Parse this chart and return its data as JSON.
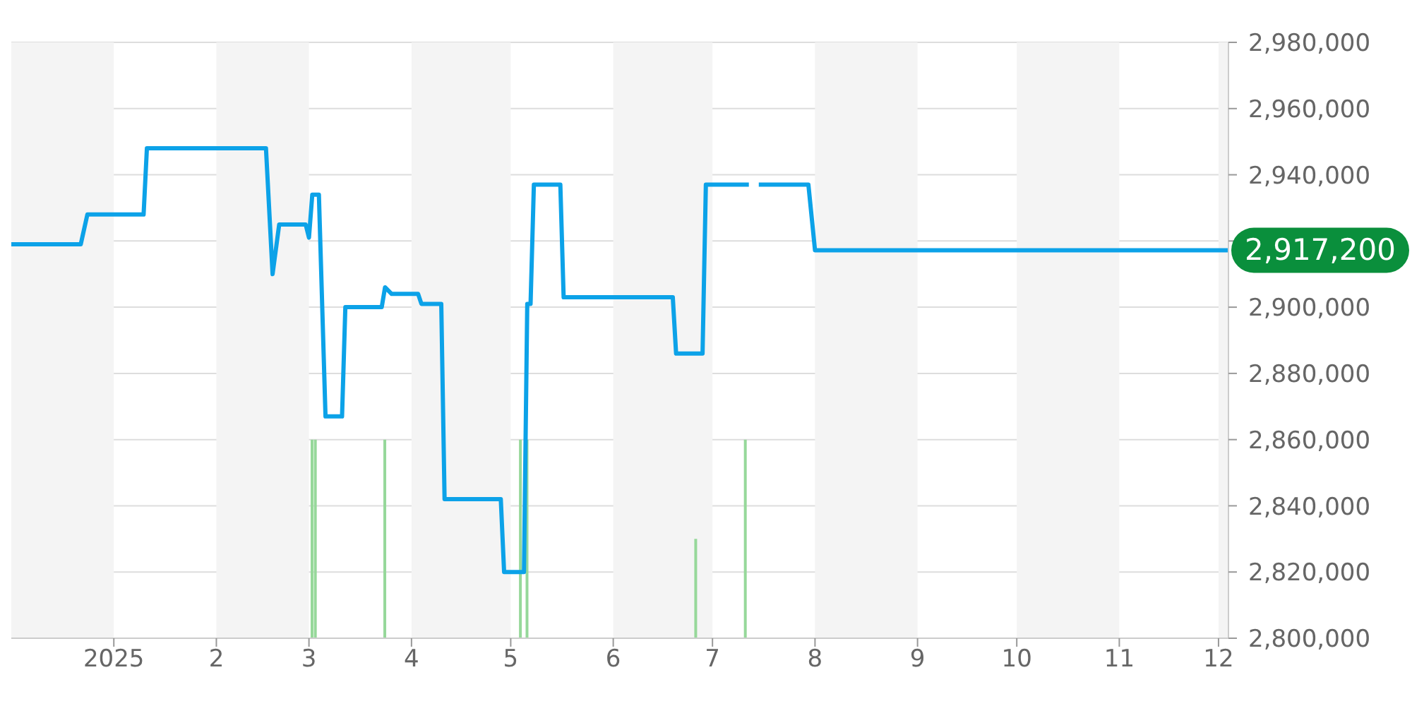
{
  "chart_data": {
    "type": "line",
    "xlim": [
      "2024-12-01",
      "2025-12-04"
    ],
    "ylim": [
      2800000,
      2980000
    ],
    "xticks": [
      {
        "value": "2025-01-01",
        "label": "2025"
      },
      {
        "value": "2025-02-01",
        "label": "2"
      },
      {
        "value": "2025-03-01",
        "label": "3"
      },
      {
        "value": "2025-04-01",
        "label": "4"
      },
      {
        "value": "2025-05-01",
        "label": "5"
      },
      {
        "value": "2025-06-01",
        "label": "6"
      },
      {
        "value": "2025-07-01",
        "label": "7"
      },
      {
        "value": "2025-08-01",
        "label": "8"
      },
      {
        "value": "2025-09-01",
        "label": "9"
      },
      {
        "value": "2025-10-01",
        "label": "10"
      },
      {
        "value": "2025-11-01",
        "label": "11"
      },
      {
        "value": "2025-12-01",
        "label": "12"
      }
    ],
    "yticks": [
      {
        "value": 2800000,
        "label": "2,800,000"
      },
      {
        "value": 2820000,
        "label": "2,820,000"
      },
      {
        "value": 2840000,
        "label": "2,840,000"
      },
      {
        "value": 2860000,
        "label": "2,860,000"
      },
      {
        "value": 2880000,
        "label": "2,880,000"
      },
      {
        "value": 2900000,
        "label": "2,900,000"
      },
      {
        "value": 2920000,
        "label": null
      },
      {
        "value": 2940000,
        "label": "2,940,000"
      },
      {
        "value": 2960000,
        "label": "2,960,000"
      },
      {
        "value": 2980000,
        "label": "2,980,000"
      }
    ],
    "grid": "y",
    "legend": false,
    "marker": "none",
    "line_style": "solid",
    "series": [
      {
        "color": "#0ca2e8",
        "x": [
          "2024-12-01",
          "2024-12-22",
          "2024-12-24",
          "2025-01-10",
          "2025-01-11",
          "2025-02-16",
          "2025-02-18",
          "2025-02-20",
          "2025-02-28",
          "2025-03-01",
          "2025-03-02",
          "2025-03-04",
          "2025-03-06",
          "2025-03-11",
          "2025-03-12",
          "2025-03-23",
          "2025-03-24",
          "2025-03-26",
          "2025-04-03",
          "2025-04-04",
          "2025-04-10",
          "2025-04-11",
          "2025-04-28",
          "2025-04-29",
          "2025-05-05",
          "2025-05-06",
          "2025-05-07",
          "2025-05-08",
          "2025-05-16",
          "2025-05-17",
          "2025-06-19",
          "2025-06-20",
          "2025-06-28",
          "2025-06-29",
          "2025-07-12",
          "2025-07-13",
          "2025-07-15",
          "2025-07-30",
          "2025-08-01",
          "2025-12-04"
        ],
        "values": [
          2919000,
          2919000,
          2928000,
          2928000,
          2948000,
          2948000,
          2910000,
          2925000,
          2925000,
          2921000,
          2934000,
          2934000,
          2867000,
          2867000,
          2900000,
          2900000,
          2906000,
          2904000,
          2904000,
          2901000,
          2901000,
          2842000,
          2842000,
          2820000,
          2820000,
          2901000,
          2901000,
          2937000,
          2937000,
          2903000,
          2903000,
          2886000,
          2886000,
          2937000,
          2937000,
          null,
          2937000,
          2937000,
          2917200,
          2917200
        ]
      },
      {
        "type": "bar",
        "color": "#96d89a",
        "x": [
          "2025-03-02",
          "2025-03-03",
          "2025-03-24",
          "2025-05-04",
          "2025-05-06",
          "2025-06-26",
          "2025-07-11"
        ],
        "values": [
          2860000,
          2860000,
          2860000,
          2860000,
          2860000,
          2830000,
          2860000
        ]
      }
    ],
    "bands": [
      {
        "axis": "x",
        "from": "2024-12-01",
        "to": "2025-01-01",
        "color": "#f4f4f4"
      },
      {
        "axis": "x",
        "from": "2025-02-01",
        "to": "2025-03-01",
        "color": "#f4f4f4"
      },
      {
        "axis": "x",
        "from": "2025-04-01",
        "to": "2025-05-01",
        "color": "#f4f4f4"
      },
      {
        "axis": "x",
        "from": "2025-06-01",
        "to": "2025-07-01",
        "color": "#f4f4f4"
      },
      {
        "axis": "x",
        "from": "2025-08-01",
        "to": "2025-09-01",
        "color": "#f4f4f4"
      },
      {
        "axis": "x",
        "from": "2025-10-01",
        "to": "2025-11-01",
        "color": "#f4f4f4"
      },
      {
        "axis": "x",
        "from": "2025-12-01",
        "to": "2025-12-04",
        "color": "#f4f4f4"
      }
    ],
    "annotations": [
      {
        "text": "2,917,200",
        "x": "2025-12-04",
        "y": 2917200
      }
    ]
  }
}
